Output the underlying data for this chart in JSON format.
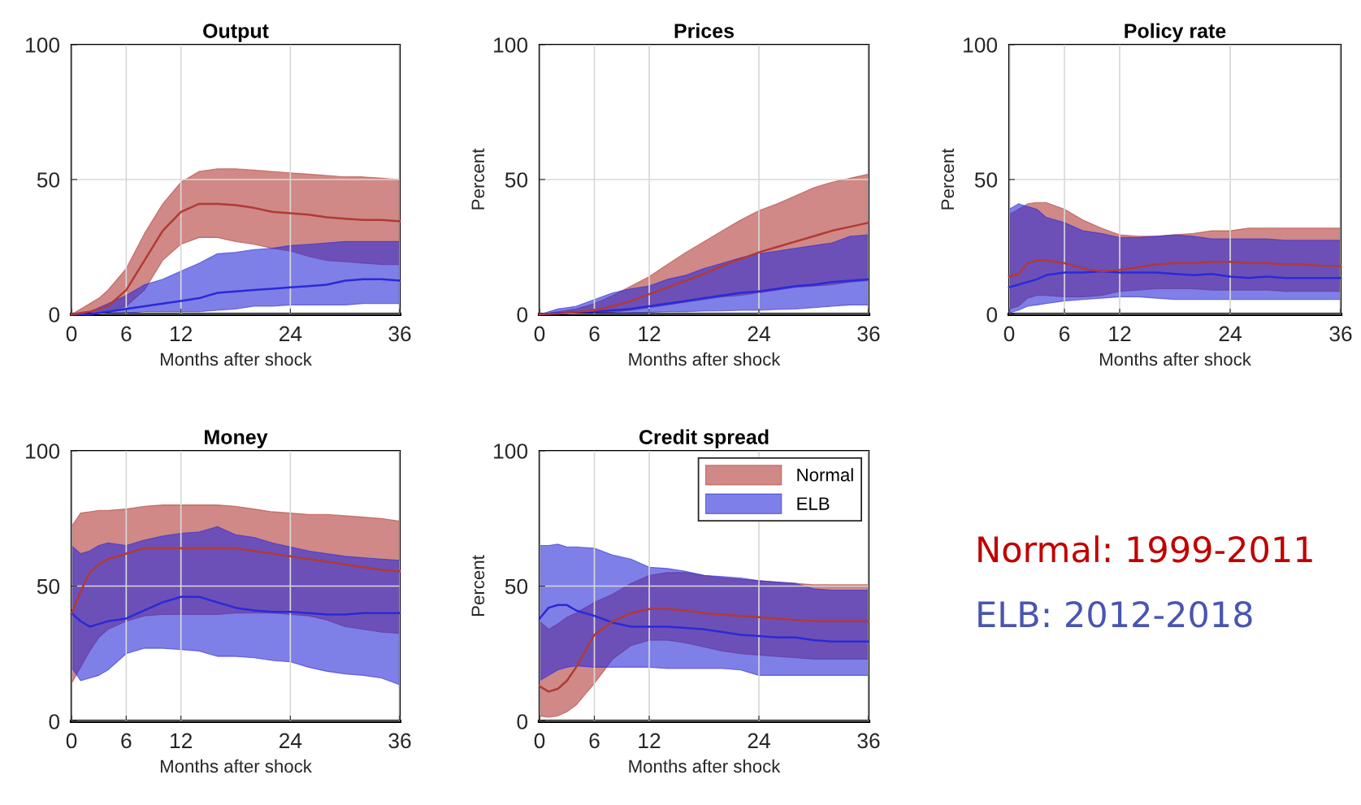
{
  "chart_data": [
    {
      "type": "line",
      "title": "Output",
      "xlabel": "Months after shock",
      "x": [
        0,
        1,
        2,
        3,
        4,
        6,
        8,
        10,
        12,
        14,
        16,
        18,
        20,
        22,
        24,
        26,
        28,
        30,
        32,
        34,
        36
      ],
      "xlim": [
        0,
        36
      ],
      "ylim": [
        0,
        100
      ],
      "xticks": [
        0,
        6,
        12,
        24,
        36
      ],
      "yticks": [
        0,
        50,
        100
      ],
      "grid": true,
      "legend": false,
      "series": [
        {
          "color": "#b03a36",
          "values": [
            0,
            0.5,
            1,
            2,
            3,
            9,
            20,
            31,
            38,
            41,
            41,
            40.5,
            39.5,
            38,
            37.5,
            37,
            36,
            35.5,
            35,
            35,
            34.5
          ],
          "upper": [
            0,
            2,
            4,
            6,
            9,
            17,
            30,
            41,
            49,
            53,
            54,
            54,
            53.5,
            53,
            52.5,
            52,
            51.5,
            51,
            51,
            50.5,
            50
          ],
          "lower": [
            0,
            0.2,
            0.5,
            0.8,
            1,
            3,
            9,
            20,
            26,
            28.5,
            28.5,
            27,
            26,
            24.5,
            23.5,
            21.5,
            20,
            19.5,
            19,
            18.5,
            18.5
          ]
        },
        {
          "color": "#2a2ad8",
          "values": [
            0,
            0,
            0,
            0.5,
            1,
            2,
            3,
            4,
            5,
            6,
            8,
            8.5,
            9,
            9.5,
            10,
            10.5,
            11,
            12.5,
            13,
            13,
            12.5
          ],
          "upper": [
            0,
            0.5,
            1,
            2.5,
            4,
            7,
            11,
            13,
            16,
            19,
            22.5,
            23,
            24,
            24.5,
            25.5,
            26,
            26.5,
            27,
            27,
            27,
            27
          ],
          "lower": [
            0,
            0,
            0,
            0,
            0,
            0.5,
            1,
            1,
            1,
            1,
            1.5,
            2,
            3,
            3,
            3.5,
            3.5,
            3.5,
            3.5,
            4,
            4,
            4
          ]
        }
      ]
    },
    {
      "type": "line",
      "title": "Prices",
      "xlabel": "Months after shock",
      "ylabel": "Percent",
      "x": [
        0,
        1,
        2,
        3,
        4,
        6,
        8,
        10,
        12,
        14,
        16,
        18,
        20,
        22,
        24,
        26,
        28,
        30,
        32,
        34,
        36
      ],
      "xlim": [
        0,
        36
      ],
      "ylim": [
        0,
        100
      ],
      "xticks": [
        0,
        6,
        12,
        24,
        36
      ],
      "yticks": [
        0,
        50,
        100
      ],
      "grid": true,
      "legend": false,
      "series": [
        {
          "color": "#b03a36",
          "values": [
            0,
            0.2,
            0.3,
            0.5,
            0.8,
            1.5,
            3,
            5,
            7.5,
            10,
            12.5,
            15,
            18,
            20.5,
            23,
            25,
            27,
            29,
            31,
            32.5,
            34
          ],
          "upper": [
            0,
            0.5,
            1,
            1.5,
            2,
            4,
            7,
            10.5,
            14,
            18.5,
            23,
            27,
            31,
            35,
            38.5,
            41,
            44,
            47,
            49,
            50.5,
            52
          ],
          "lower": [
            0,
            0,
            0,
            0,
            0,
            0.3,
            0.8,
            1.5,
            2.5,
            3.5,
            4.5,
            5.5,
            6.5,
            7,
            8,
            9,
            10,
            10.5,
            11,
            12,
            12.5
          ]
        },
        {
          "color": "#2a2ad8",
          "values": [
            0,
            0.2,
            0.5,
            0.6,
            0.8,
            1,
            1.5,
            2,
            3,
            4,
            5,
            6,
            7,
            8,
            8.5,
            9.5,
            10.5,
            11,
            12,
            12.5,
            13
          ],
          "upper": [
            0,
            1,
            2,
            2.5,
            3,
            5.5,
            8,
            9.5,
            10.5,
            13,
            14.5,
            17,
            19,
            21,
            22.5,
            23.5,
            24.5,
            25.5,
            26.5,
            29,
            29.5
          ],
          "lower": [
            0,
            0,
            0,
            0,
            0,
            0,
            0.2,
            0.5,
            0.8,
            1,
            1,
            1.2,
            1.3,
            1.5,
            1.5,
            1.8,
            2,
            2.5,
            3,
            3.5,
            3.5
          ]
        }
      ]
    },
    {
      "type": "line",
      "title": "Policy rate",
      "xlabel": "Months after shock",
      "ylabel": "Percent",
      "x": [
        0,
        1,
        2,
        3,
        4,
        6,
        8,
        10,
        12,
        14,
        16,
        18,
        20,
        22,
        24,
        26,
        28,
        30,
        32,
        34,
        36
      ],
      "xlim": [
        0,
        36
      ],
      "ylim": [
        0,
        100
      ],
      "xticks": [
        0,
        6,
        12,
        24,
        36
      ],
      "yticks": [
        0,
        50,
        100
      ],
      "grid": true,
      "legend": false,
      "series": [
        {
          "color": "#b03a36",
          "values": [
            14,
            15,
            19,
            20,
            20,
            19,
            17,
            16,
            16.5,
            17.5,
            18.5,
            19,
            19,
            19.5,
            19.5,
            19,
            19,
            18.5,
            18.5,
            18,
            18
          ],
          "upper": [
            37,
            39,
            41,
            41.5,
            41.5,
            39,
            35,
            32,
            29.5,
            29,
            29,
            29.5,
            30,
            31,
            31,
            32,
            32,
            32,
            32,
            32,
            32
          ],
          "lower": [
            2,
            3,
            6,
            7,
            7,
            6.5,
            6.5,
            7,
            8.5,
            9,
            9.5,
            9.5,
            9.5,
            9,
            9,
            9,
            9,
            8.5,
            8.5,
            8.5,
            8.5
          ]
        },
        {
          "color": "#2a2ad8",
          "values": [
            10,
            11,
            12,
            13,
            14.5,
            15.5,
            15.5,
            16,
            15.5,
            15.5,
            15.5,
            15,
            14.5,
            15,
            14,
            13.5,
            14,
            13.5,
            13.5,
            13.5,
            13.5
          ],
          "upper": [
            39,
            41,
            40,
            39,
            36,
            34,
            31,
            30,
            28.5,
            28.5,
            29,
            29.5,
            29,
            28,
            28,
            28,
            28,
            27.5,
            27.5,
            27.5,
            27.5
          ],
          "lower": [
            0.5,
            1.5,
            3,
            3.5,
            4,
            5,
            5.5,
            6,
            6.5,
            6.5,
            6,
            5.5,
            5.5,
            5.5,
            5.5,
            5.5,
            5.5,
            5.5,
            5.5,
            5.5,
            5.5
          ]
        }
      ]
    },
    {
      "type": "line",
      "title": "Money",
      "xlabel": "Months after shock",
      "x": [
        0,
        1,
        2,
        3,
        4,
        6,
        8,
        10,
        12,
        14,
        16,
        18,
        20,
        22,
        24,
        26,
        28,
        30,
        32,
        34,
        36
      ],
      "xlim": [
        0,
        36
      ],
      "ylim": [
        0,
        100
      ],
      "xticks": [
        0,
        6,
        12,
        24,
        36
      ],
      "yticks": [
        0,
        50,
        100
      ],
      "grid": true,
      "legend": false,
      "series": [
        {
          "color": "#b03a36",
          "values": [
            40,
            48,
            55,
            58,
            60,
            62,
            64,
            64,
            64,
            64,
            64,
            64,
            63,
            62,
            61,
            60,
            59,
            58,
            57,
            56,
            55.5
          ],
          "upper": [
            72,
            77,
            77.5,
            78,
            78,
            78.5,
            79.5,
            80,
            80,
            80,
            80,
            79.5,
            78.5,
            77.5,
            77,
            76.5,
            76.5,
            76,
            75.5,
            75,
            74
          ],
          "lower": [
            14,
            20,
            26,
            31,
            34,
            37,
            39,
            39.5,
            39.5,
            39.5,
            39.5,
            40,
            40,
            40,
            39.5,
            39,
            37.5,
            35,
            34,
            33,
            32.5
          ]
        },
        {
          "color": "#2a2ad8",
          "values": [
            40,
            37,
            35,
            36,
            37,
            38,
            41,
            44,
            46,
            46,
            44,
            42,
            41,
            40.5,
            40.5,
            40,
            39.5,
            39.5,
            40,
            40,
            40
          ],
          "upper": [
            65,
            62,
            63,
            65,
            66,
            65,
            67,
            68.5,
            69.5,
            70,
            72,
            69,
            68,
            66,
            64.5,
            63,
            62,
            61,
            60.5,
            60,
            59.5
          ],
          "lower": [
            20,
            15,
            16,
            17,
            19,
            25,
            27,
            27,
            26.5,
            26,
            24,
            24,
            23.5,
            22.5,
            22,
            20,
            18.5,
            17.5,
            17,
            16,
            13.5
          ]
        }
      ]
    },
    {
      "type": "line",
      "title": "Credit spread",
      "xlabel": "Months after shock",
      "ylabel": "Percent",
      "x": [
        0,
        1,
        2,
        3,
        4,
        6,
        8,
        10,
        12,
        14,
        16,
        18,
        20,
        22,
        24,
        26,
        28,
        30,
        32,
        34,
        36
      ],
      "xlim": [
        0,
        36
      ],
      "ylim": [
        0,
        100
      ],
      "xticks": [
        0,
        6,
        12,
        24,
        36
      ],
      "yticks": [
        0,
        50,
        100
      ],
      "grid": true,
      "legend": "top right",
      "series": [
        {
          "name": "Normal",
          "color": "#b03a36",
          "values": [
            13,
            11,
            12,
            15,
            20,
            32,
            37,
            40,
            41.5,
            41.5,
            41,
            40,
            39.5,
            39,
            38.5,
            38,
            37.5,
            37,
            37,
            37,
            37
          ],
          "upper": [
            37,
            34,
            36,
            38.5,
            40,
            44,
            47,
            51,
            54,
            55,
            55,
            54,
            53,
            52.5,
            52,
            51.5,
            51,
            50.5,
            50.5,
            50.5,
            50.5
          ],
          "lower": [
            2,
            1.5,
            2,
            3.5,
            6,
            14,
            23,
            28,
            30,
            30,
            29,
            27.5,
            26,
            25,
            24.5,
            24,
            23.5,
            23,
            23,
            23,
            23
          ]
        },
        {
          "name": "ELB",
          "color": "#2a2ad8",
          "values": [
            38,
            42,
            43,
            43,
            41,
            39,
            36.5,
            35,
            35,
            35,
            34.5,
            34,
            33,
            32,
            31.5,
            31,
            31,
            30,
            29.5,
            29.5,
            29.5
          ],
          "upper": [
            65,
            65,
            65.5,
            64.5,
            64.5,
            64,
            61.5,
            60,
            57,
            56.5,
            55.5,
            54,
            53.5,
            53,
            52,
            51.5,
            51,
            49,
            48.5,
            48.5,
            48.5
          ],
          "lower": [
            15,
            17,
            19,
            20,
            20.5,
            20,
            20,
            20,
            20,
            19.5,
            19.5,
            19.5,
            19.5,
            19,
            17,
            17,
            17,
            17,
            17,
            17,
            17
          ]
        }
      ]
    },
    {
      "type": "other",
      "annotations": [
        "Normal: 1999-2011",
        "ELB: 2012-2018"
      ],
      "colors": [
        "#c00000",
        "#4a55b0"
      ]
    }
  ]
}
